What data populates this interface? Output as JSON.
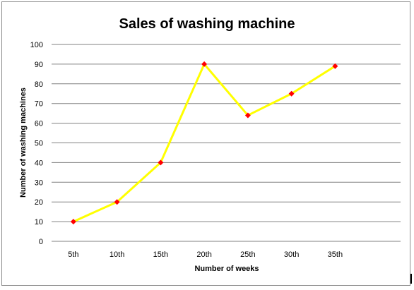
{
  "chart_data": {
    "type": "line",
    "title": "Sales of washing machine",
    "xlabel": "Number of weeks",
    "ylabel": "Number of washing  machines",
    "categories": [
      "5th",
      "10th",
      "15th",
      "20th",
      "25th",
      "30th",
      "35th"
    ],
    "series": [
      {
        "values": [
          10,
          20,
          40,
          90,
          64,
          75,
          89
        ]
      }
    ],
    "ylim": [
      0,
      100
    ],
    "yticks": [
      "0",
      "10",
      "20",
      "30",
      "40",
      "50",
      "60",
      "70",
      "80",
      "90",
      "100"
    ],
    "grid": true,
    "colors": {
      "line": "#ffff00",
      "marker": "#ff0000",
      "grid": "#808080"
    }
  }
}
